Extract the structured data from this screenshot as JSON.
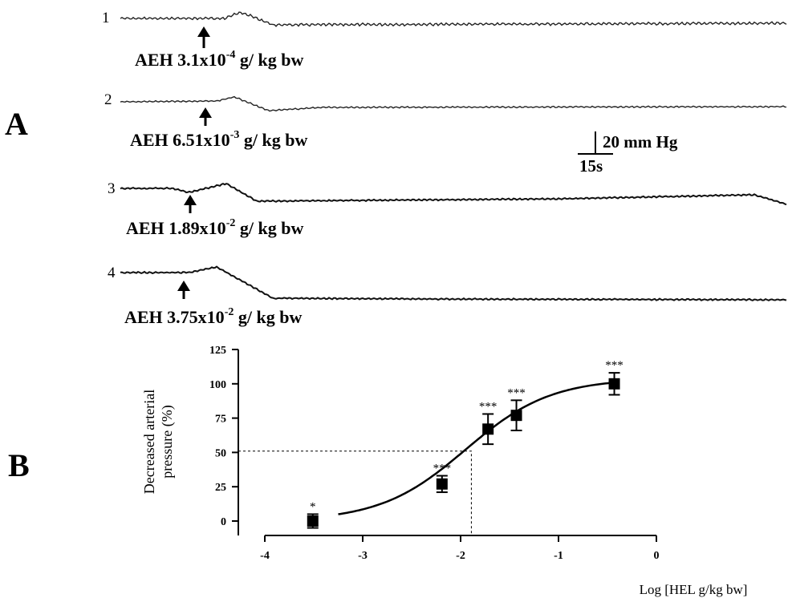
{
  "panel_a": {
    "letter": "A",
    "traces": [
      {
        "number": "1",
        "label_main": "AEH 3.1x10",
        "label_exp": "-4",
        "label_unit": " g/ kg bw"
      },
      {
        "number": "2",
        "label_main": "AEH 6.51x10",
        "label_exp": "-3",
        "label_unit": " g/ kg bw"
      },
      {
        "number": "3",
        "label_main": "AEH 1.89x10",
        "label_exp": "-2",
        "label_unit": " g/ kg bw"
      },
      {
        "number": "4",
        "label_main": "AEH 3.75x10",
        "label_exp": "-2",
        "label_unit": " g/ kg bw"
      }
    ],
    "scale_bar": {
      "pressure_label": "20 mm Hg",
      "time_label": "15s"
    }
  },
  "panel_b": {
    "letter": "B"
  },
  "chart_data": {
    "type": "scatter",
    "xlabel": "Log [HEL g/kg bw]",
    "ylabel_line1": "Decreased arterial",
    "ylabel_line2": "pressure (%)",
    "xlim": [
      -4,
      0
    ],
    "ylim": [
      0,
      125
    ],
    "xticks": [
      -4,
      -3,
      -2,
      -1,
      0
    ],
    "yticks": [
      0,
      25,
      50,
      75,
      100,
      125
    ],
    "xtick_labels": [
      "-4",
      "-3",
      "-2",
      "-1",
      "0"
    ],
    "ytick_labels": [
      "0",
      "25",
      "50",
      "75",
      "100",
      "125"
    ],
    "points": [
      {
        "x": -3.51,
        "y": 0,
        "err": 5,
        "sig": "*"
      },
      {
        "x": -2.19,
        "y": 27,
        "err": 6,
        "sig": "***"
      },
      {
        "x": -1.72,
        "y": 67,
        "err": 11,
        "sig": "***"
      },
      {
        "x": -1.43,
        "y": 77,
        "err": 11,
        "sig": "***"
      },
      {
        "x": -0.43,
        "y": 100,
        "err": 8,
        "sig": "***"
      }
    ],
    "fit": {
      "bottom": 0,
      "top": 104,
      "log_ec50": -1.95,
      "hill_slope": 1.0,
      "x_start": -3.25,
      "x_end": -0.43
    },
    "ec50_marker": {
      "x": -1.89,
      "y": 51
    },
    "grid": false,
    "legend": false
  }
}
